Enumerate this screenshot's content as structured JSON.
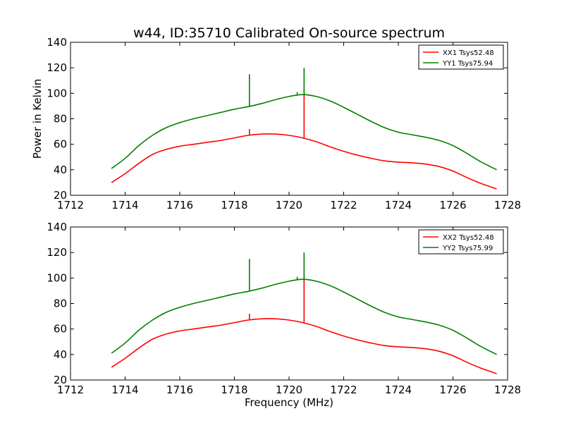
{
  "title": "w44, ID:35710 Calibrated On-source spectrum",
  "chart_data": [
    {
      "type": "line",
      "title": "w44, ID:35710 Calibrated On-source spectrum",
      "xlabel": "",
      "ylabel": "Power in Kelvin",
      "xlim": [
        1712,
        1728
      ],
      "ylim": [
        20,
        140
      ],
      "xticks": [
        1712,
        1714,
        1716,
        1718,
        1720,
        1722,
        1724,
        1726,
        1728
      ],
      "yticks": [
        20,
        40,
        60,
        80,
        100,
        120,
        140
      ],
      "grid": false,
      "legend_position": "top-right",
      "x": [
        1713.5,
        1714.0,
        1714.5,
        1715.0,
        1715.5,
        1716.0,
        1716.5,
        1717.0,
        1717.5,
        1718.0,
        1718.5,
        1719.0,
        1719.5,
        1720.0,
        1720.5,
        1721.0,
        1721.5,
        1722.0,
        1722.5,
        1723.0,
        1723.5,
        1724.0,
        1724.5,
        1725.0,
        1725.5,
        1726.0,
        1726.5,
        1727.0,
        1727.6
      ],
      "series": [
        {
          "name": "XX1 Tsys52.48",
          "color": "#ff0000",
          "values": [
            30,
            37,
            45,
            52,
            56,
            58.5,
            60,
            61.5,
            63,
            65,
            67,
            68,
            68,
            67,
            65,
            62,
            58,
            54.5,
            51.5,
            49,
            47,
            46,
            45.5,
            44.5,
            42.5,
            39,
            34,
            29.5,
            25
          ],
          "spikes": [
            {
              "x": 1718.55,
              "y": 72
            },
            {
              "x": 1720.55,
              "y": 101
            }
          ]
        },
        {
          "name": "YY1 Tsys75.94",
          "color": "#008000",
          "values": [
            41,
            49,
            59,
            67,
            73,
            77,
            80,
            82.5,
            85,
            87.5,
            89.5,
            92,
            95,
            97.5,
            99,
            97.5,
            94,
            89,
            83.5,
            78,
            73,
            69.5,
            67.5,
            65.5,
            63,
            59,
            53,
            46.5,
            40
          ],
          "spikes": [
            {
              "x": 1718.55,
              "y": 115
            },
            {
              "x": 1720.3,
              "y": 101
            },
            {
              "x": 1720.55,
              "y": 120
            }
          ]
        }
      ]
    },
    {
      "type": "line",
      "title": "",
      "xlabel": "Frequency (MHz)",
      "ylabel": "",
      "xlim": [
        1712,
        1728
      ],
      "ylim": [
        20,
        140
      ],
      "xticks": [
        1712,
        1714,
        1716,
        1718,
        1720,
        1722,
        1724,
        1726,
        1728
      ],
      "yticks": [
        20,
        40,
        60,
        80,
        100,
        120,
        140
      ],
      "grid": false,
      "legend_position": "top-right",
      "x": [
        1713.5,
        1714.0,
        1714.5,
        1715.0,
        1715.5,
        1716.0,
        1716.5,
        1717.0,
        1717.5,
        1718.0,
        1718.5,
        1719.0,
        1719.5,
        1720.0,
        1720.5,
        1721.0,
        1721.5,
        1722.0,
        1722.5,
        1723.0,
        1723.5,
        1724.0,
        1724.5,
        1725.0,
        1725.5,
        1726.0,
        1726.5,
        1727.0,
        1727.6
      ],
      "series": [
        {
          "name": "XX2 Tsys52.48",
          "color": "#ff0000",
          "values": [
            30,
            37,
            45,
            52,
            56,
            58.5,
            60,
            61.5,
            63,
            65,
            67,
            68,
            68,
            67,
            65,
            62,
            58,
            54.5,
            51.5,
            49,
            47,
            46,
            45.5,
            44.5,
            42.5,
            39,
            34,
            29.5,
            25
          ],
          "spikes": [
            {
              "x": 1718.55,
              "y": 72
            },
            {
              "x": 1720.55,
              "y": 101
            }
          ]
        },
        {
          "name": "YY2 Tsys75.99",
          "color": "#008000",
          "values": [
            41,
            49,
            59,
            67,
            73,
            77,
            80,
            82.5,
            85,
            87.5,
            89.5,
            92,
            95,
            97.5,
            99,
            97.5,
            94,
            89,
            83.5,
            78,
            73,
            69.5,
            67.5,
            65.5,
            63,
            59,
            53,
            46.5,
            40
          ],
          "spikes": [
            {
              "x": 1718.55,
              "y": 115
            },
            {
              "x": 1720.3,
              "y": 101
            },
            {
              "x": 1720.55,
              "y": 120
            }
          ]
        }
      ]
    }
  ]
}
